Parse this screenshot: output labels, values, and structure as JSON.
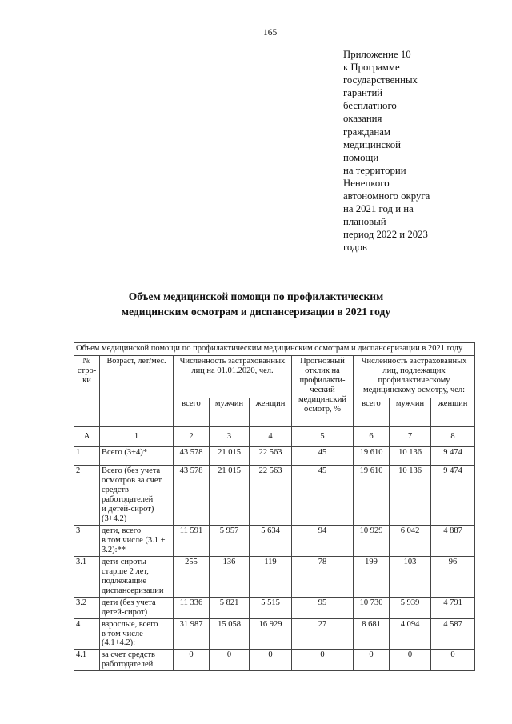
{
  "page": {
    "number": "165"
  },
  "appendix": {
    "text": "Приложение 10\nк Программе\nгосударственных\nгарантий\nбесплатного\nоказания\nгражданам\nмедицинской\nпомощи\nна территории\nНенецкого\nавтономного округа\nна 2021 год и на\nплановый\nпериод 2022 и 2023\nгодов"
  },
  "title": "Объем медицинской помощи по профилактическим\nмедицинским осмотрам и диспансеризации в 2021 году",
  "table": {
    "caption": "Объем медицинской помощи по профилактическим медицинским осмотрам и диспансеризации в 2021 году",
    "headers": {
      "row_no": "№\nстро-\nки",
      "age": "Возраст, лет/мес.",
      "insured_2020": "Численность застрахованных\nлиц на 01.01.2020, чел.",
      "forecast": "Прогнозный\nотклик на\nпрофилакти-\nческий\nмедицинский\nосмотр, %",
      "subject_to_exam": "Численность застрахованных\nлиц, подлежащих\nпрофилактическому\nмедицинскому осмотру, чел:",
      "sub": [
        "всего",
        "мужчин",
        "женщин"
      ]
    },
    "index_row": [
      "А",
      "1",
      "2",
      "3",
      "4",
      "5",
      "6",
      "7",
      "8"
    ],
    "rows": [
      {
        "no": "1",
        "label": "Всего (3+4)*",
        "values": [
          "43 578",
          "21 015",
          "22 563",
          "45",
          "19 610",
          "10 136",
          "9 474"
        ]
      },
      {
        "no": "2",
        "label": "Всего (без учета\nосмотров за счет\nсредств\nработодателей\nи детей-сирот)\n(3+4.2)",
        "values": [
          "43 578",
          "21 015",
          "22 563",
          "45",
          "19 610",
          "10 136",
          "9 474"
        ]
      },
      {
        "no": "3",
        "label": "дети, всего\nв том числе (3.1 +\n3.2):**",
        "values": [
          "11 591",
          "5 957",
          "5 634",
          "94",
          "10 929",
          "6 042",
          "4 887"
        ]
      },
      {
        "no": "3.1",
        "label": "дети-сироты\nстарше 2 лет,\nподлежащие\nдиспансеризации",
        "values": [
          "255",
          "136",
          "119",
          "78",
          "199",
          "103",
          "96"
        ]
      },
      {
        "no": "3.2",
        "label": "дети (без учета\nдетей-сирот)",
        "values": [
          "11 336",
          "5 821",
          "5 515",
          "95",
          "10 730",
          "5 939",
          "4 791"
        ]
      },
      {
        "no": "4",
        "label": "взрослые, всего\nв том числе\n(4.1+4.2):",
        "values": [
          "31 987",
          "15 058",
          "16 929",
          "27",
          "8 681",
          "4 094",
          "4 587"
        ]
      },
      {
        "no": "4.1",
        "label": "за счет средств\nработодателей",
        "values": [
          "0",
          "0",
          "0",
          "0",
          "0",
          "0",
          "0"
        ]
      }
    ]
  }
}
